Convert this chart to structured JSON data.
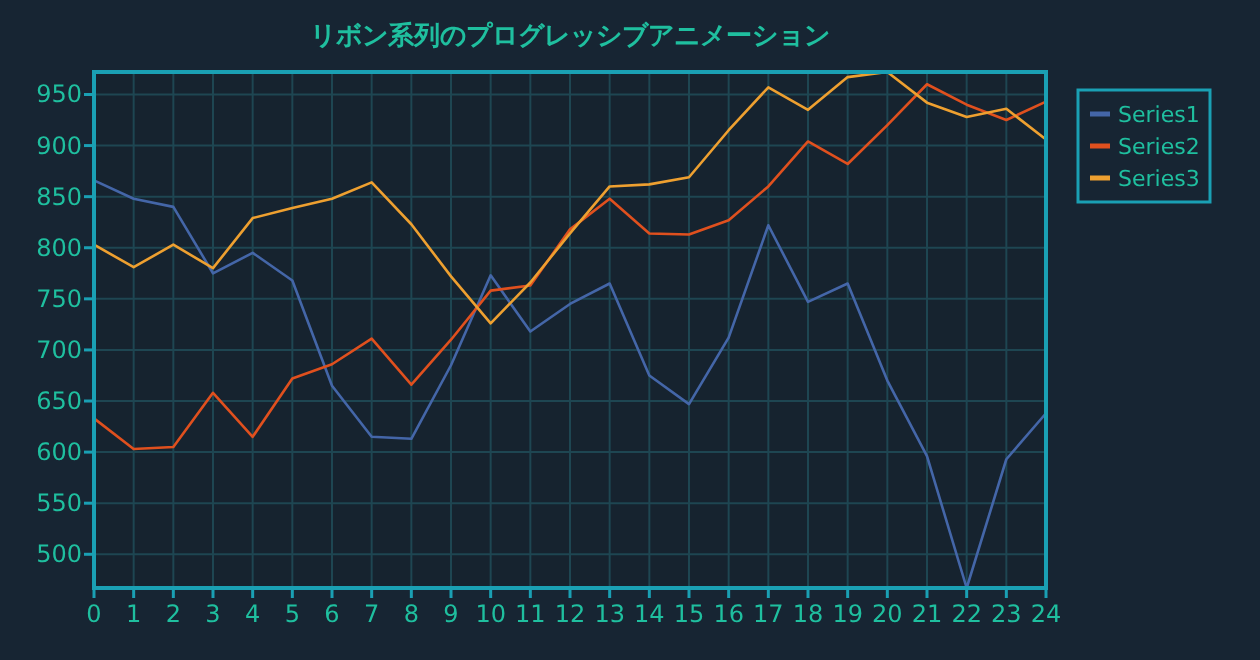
{
  "chart_data": {
    "type": "line",
    "title": "リボン系列のプログレッシブアニメーション",
    "x": [
      0,
      1,
      2,
      3,
      4,
      5,
      6,
      7,
      8,
      9,
      10,
      11,
      12,
      13,
      14,
      15,
      16,
      17,
      18,
      19,
      20,
      21,
      22,
      23,
      24
    ],
    "xlim": [
      0,
      24
    ],
    "xticks": [
      0,
      1,
      2,
      3,
      4,
      5,
      6,
      7,
      8,
      9,
      10,
      11,
      12,
      13,
      14,
      15,
      16,
      17,
      18,
      19,
      20,
      21,
      22,
      23,
      24
    ],
    "ylim": [
      467,
      972
    ],
    "yticks": [
      500,
      550,
      600,
      650,
      700,
      750,
      800,
      850,
      900,
      950
    ],
    "grid": true,
    "legend": "top right",
    "marker": "none",
    "line_style": "solid",
    "series": [
      {
        "name": "Series1",
        "color": "#4466a8",
        "values": [
          866,
          848,
          840,
          775,
          795,
          768,
          665,
          615,
          613,
          685,
          773,
          718,
          745,
          765,
          675,
          647,
          712,
          822,
          747,
          765,
          670,
          596,
          467,
          593,
          638
        ]
      },
      {
        "name": "Series2",
        "color": "#e0501e",
        "values": [
          633,
          603,
          605,
          658,
          615,
          672,
          686,
          711,
          666,
          710,
          758,
          763,
          818,
          848,
          814,
          813,
          827,
          860,
          904,
          882,
          920,
          960,
          940,
          925,
          943
        ]
      },
      {
        "name": "Series3",
        "color": "#eea030",
        "values": [
          803,
          781,
          803,
          780,
          829,
          839,
          848,
          864,
          823,
          772,
          726,
          766,
          814,
          860,
          862,
          869,
          915,
          957,
          935,
          967,
          972,
          942,
          928,
          936,
          906
        ]
      }
    ]
  }
}
